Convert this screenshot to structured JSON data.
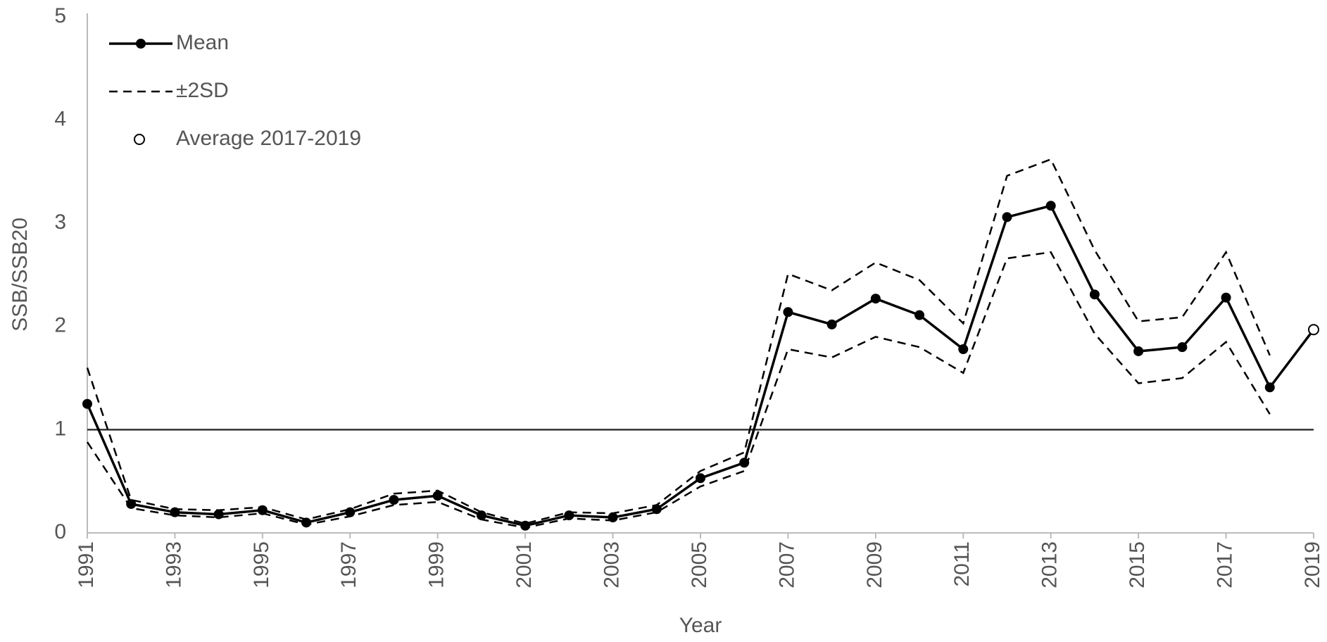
{
  "chart_data": {
    "type": "line",
    "y_label": "SSB/SSB20",
    "x_label": "Year",
    "x": [
      1991,
      1992,
      1993,
      1994,
      1995,
      1996,
      1997,
      1998,
      1999,
      2000,
      2001,
      2002,
      2003,
      2004,
      2005,
      2006,
      2007,
      2008,
      2009,
      2010,
      2011,
      2012,
      2013,
      2014,
      2015,
      2016,
      2017,
      2018,
      2019
    ],
    "xlim": [
      1991,
      2019
    ],
    "xticks": [
      1991,
      1993,
      1995,
      1997,
      1999,
      2001,
      2003,
      2005,
      2007,
      2009,
      2011,
      2013,
      2015,
      2017,
      2019
    ],
    "ylim": [
      0,
      5
    ],
    "yticks": [
      0,
      1,
      2,
      3,
      4,
      5
    ],
    "reference_line": 1,
    "series": [
      {
        "name": "Mean",
        "color": "#000000",
        "style": "solid-marker",
        "values": [
          1.25,
          0.28,
          0.2,
          0.18,
          0.22,
          0.1,
          0.2,
          0.32,
          0.36,
          0.17,
          0.07,
          0.17,
          0.15,
          0.23,
          0.53,
          0.68,
          2.14,
          2.02,
          2.27,
          2.11,
          1.78,
          3.06,
          3.17,
          2.31,
          1.76,
          1.8,
          2.28,
          1.41,
          null
        ]
      },
      {
        "name": "±2SD",
        "color": "#000000",
        "style": "dashed",
        "values": [
          1.6,
          0.32,
          0.23,
          0.22,
          0.25,
          0.13,
          0.23,
          0.38,
          0.41,
          0.2,
          0.09,
          0.2,
          0.19,
          0.27,
          0.6,
          0.78,
          2.51,
          2.35,
          2.62,
          2.45,
          2.03,
          3.46,
          3.62,
          2.74,
          2.05,
          2.09,
          2.72,
          1.72,
          null
        ]
      },
      {
        "name": null,
        "color": "#000000",
        "style": "dashed",
        "values": [
          0.88,
          0.24,
          0.17,
          0.15,
          0.19,
          0.08,
          0.16,
          0.27,
          0.3,
          0.13,
          0.05,
          0.14,
          0.12,
          0.2,
          0.45,
          0.6,
          1.78,
          1.7,
          1.9,
          1.8,
          1.55,
          2.66,
          2.72,
          1.93,
          1.45,
          1.5,
          1.85,
          1.15,
          null
        ]
      },
      {
        "name": "Average 2017-2019",
        "color": "#000000",
        "style": "open-marker",
        "values": [
          null,
          null,
          null,
          null,
          null,
          null,
          null,
          null,
          null,
          null,
          null,
          null,
          null,
          null,
          null,
          null,
          null,
          null,
          null,
          null,
          null,
          null,
          null,
          null,
          null,
          null,
          null,
          null,
          1.97
        ]
      }
    ]
  }
}
